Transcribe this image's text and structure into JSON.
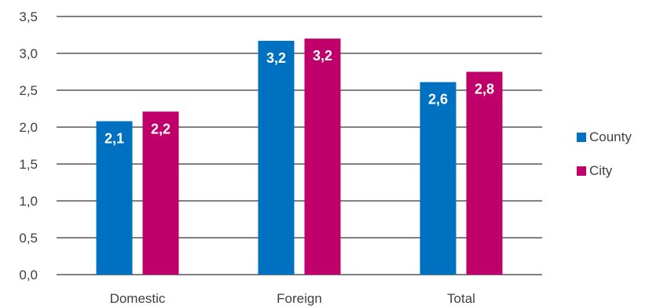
{
  "chart_data": {
    "type": "bar",
    "categories": [
      "Domestic",
      "Foreign",
      "Total"
    ],
    "series": [
      {
        "name": "County",
        "values": [
          2.08,
          3.17,
          2.61
        ],
        "labels": [
          "2,1",
          "3,2",
          "2,6"
        ],
        "color": "#0070c0"
      },
      {
        "name": "City",
        "values": [
          2.21,
          3.2,
          2.75
        ],
        "labels": [
          "2,2",
          "3,2",
          "2,8"
        ],
        "color": "#c0006a"
      }
    ],
    "yticks": [
      "0,0",
      "0,5",
      "1,0",
      "1,5",
      "2,0",
      "2,5",
      "3,0",
      "3,5"
    ],
    "ylim": [
      0,
      3.5
    ],
    "grid": true,
    "legend_position": "right",
    "title": "",
    "xlabel": "",
    "ylabel": ""
  }
}
